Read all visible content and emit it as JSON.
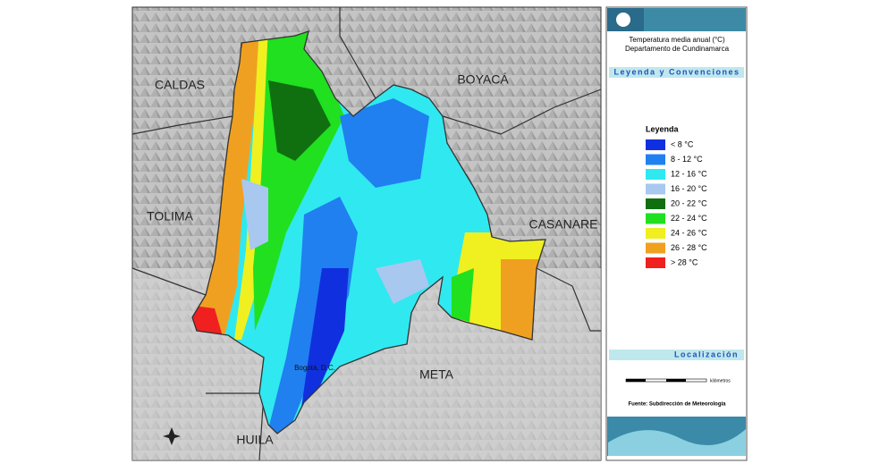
{
  "map": {
    "departments": [
      "CALDAS",
      "BOYACÁ",
      "TOLIMA",
      "CASANARE",
      "META",
      "HUILA"
    ],
    "capital": "Bogotá, D.C."
  },
  "panel": {
    "title": "Temperatura media anual (°C)",
    "subtitle": "Departamento de Cundinamarca",
    "section": "Leyenda y Convenciones",
    "legend_title": "Leyenda",
    "legend": [
      {
        "label": "< 8 °C",
        "color": "#1030e0"
      },
      {
        "label": "8 - 12 °C",
        "color": "#2080f0"
      },
      {
        "label": "12 - 16 °C",
        "color": "#30e8f0"
      },
      {
        "label": "16 - 20 °C",
        "color": "#a8c8f0"
      },
      {
        "label": "20 - 22 °C",
        "color": "#107010"
      },
      {
        "label": "22 - 24 °C",
        "color": "#20e020"
      },
      {
        "label": "24 - 26 °C",
        "color": "#f0f020"
      },
      {
        "label": "26 - 28 °C",
        "color": "#f0a020"
      },
      {
        "label": "> 28 °C",
        "color": "#f02020"
      }
    ],
    "location_title": "Localización",
    "scale_unit": "kilómetros",
    "source": "Fuente:  Subdirección de Meteorología"
  }
}
